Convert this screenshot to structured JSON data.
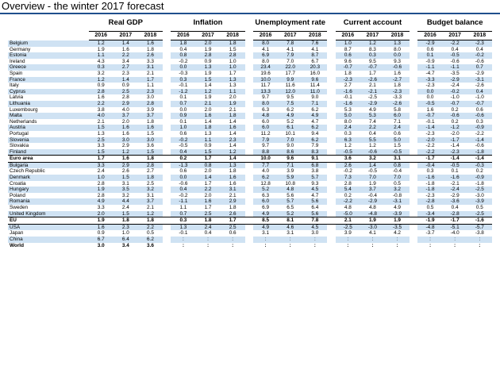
{
  "title": "Overview - the winter 2017 forecast",
  "groups": [
    "Real GDP",
    "Inflation",
    "Unemployment rate",
    "Current account",
    "Budget balance"
  ],
  "years": [
    "2016",
    "2017",
    "2018"
  ],
  "rows": [
    {
      "name": "Belgium",
      "shade": true,
      "vals": [
        "1.2",
        "1.4",
        "1.6",
        "1.8",
        "2.0",
        "1.8",
        "8.0",
        "7.8",
        "7.6",
        "1.0",
        "1.2",
        "1.3",
        "-2.9",
        "-2.2",
        "-2.3"
      ]
    },
    {
      "name": "Germany",
      "shade": false,
      "vals": [
        "1.9",
        "1.6",
        "1.8",
        "0.4",
        "1.9",
        "1.5",
        "4.1",
        "4.1",
        "4.1",
        "8.7",
        "8.3",
        "8.0",
        "0.6",
        "0.4",
        "0.4"
      ]
    },
    {
      "name": "Estonia",
      "shade": true,
      "vals": [
        "1.1",
        "2.2",
        "2.6",
        "0.8",
        "2.8",
        "2.8",
        "6.9",
        "7.9",
        "8.7",
        "0.6",
        "0.3",
        "0.0",
        "0.1",
        "-0.5",
        "-0.2"
      ]
    },
    {
      "name": "Ireland",
      "shade": false,
      "vals": [
        "4.3",
        "3.4",
        "3.3",
        "-0.2",
        "0.9",
        "1.0",
        "8.0",
        "7.0",
        "6.7",
        "9.6",
        "9.5",
        "9.3",
        "-0.9",
        "-0.6",
        "-0.6"
      ]
    },
    {
      "name": "Greece",
      "shade": true,
      "vals": [
        "0.3",
        "2.7",
        "3.1",
        "0.0",
        "1.3",
        "1.0",
        "23.4",
        "22.0",
        "20.3",
        "-0.7",
        "-0.7",
        "-0.6",
        "-1.1",
        "-1.1",
        "0.7"
      ]
    },
    {
      "name": "Spain",
      "shade": false,
      "vals": [
        "3.2",
        "2.3",
        "2.1",
        "-0.3",
        "1.9",
        "1.7",
        "19.6",
        "17.7",
        "16.0",
        "1.8",
        "1.7",
        "1.6",
        "-4.7",
        "-3.5",
        "-2.9"
      ]
    },
    {
      "name": "France",
      "shade": true,
      "vals": [
        "1.2",
        "1.4",
        "1.7",
        "0.3",
        "1.5",
        "1.3",
        "10.0",
        "9.9",
        "9.6",
        "-2.3",
        "-2.6",
        "-2.7",
        "-3.3",
        "-2.9",
        "-3.1"
      ]
    },
    {
      "name": "Italy",
      "shade": false,
      "vals": [
        "0.9",
        "0.9",
        "1.1",
        "-0.1",
        "1.4",
        "1.3",
        "11.7",
        "11.6",
        "11.4",
        "2.7",
        "2.1",
        "1.8",
        "-2.3",
        "-2.4",
        "-2.6"
      ]
    },
    {
      "name": "Cyprus",
      "shade": true,
      "vals": [
        "2.8",
        "2.5",
        "2.3",
        "-1.2",
        "1.2",
        "1.1",
        "13.3",
        "12.0",
        "11.0",
        "-1.6",
        "-2.1",
        "-2.3",
        "0.0",
        "-0.2",
        "0.4"
      ]
    },
    {
      "name": "Latvia",
      "shade": false,
      "vals": [
        "1.6",
        "2.8",
        "3.0",
        "0.1",
        "1.9",
        "2.0",
        "9.7",
        "9.5",
        "9.0",
        "-0.1",
        "-2.5",
        "-3.3",
        "0.0",
        "-1.0",
        "-1.0"
      ]
    },
    {
      "name": "Lithuania",
      "shade": true,
      "vals": [
        "2.2",
        "2.9",
        "2.8",
        "0.7",
        "2.1",
        "1.9",
        "8.0",
        "7.5",
        "7.1",
        "-1.6",
        "-2.9",
        "-2.6",
        "-0.5",
        "-0.7",
        "-0.7"
      ]
    },
    {
      "name": "Luxembourg",
      "shade": false,
      "vals": [
        "3.8",
        "4.0",
        "3.9",
        "0.0",
        "2.0",
        "2.1",
        "6.3",
        "6.2",
        "6.2",
        "5.3",
        "4.9",
        "5.8",
        "1.6",
        "0.2",
        "0.6"
      ]
    },
    {
      "name": "Malta",
      "shade": true,
      "vals": [
        "4.0",
        "3.7",
        "3.7",
        "0.9",
        "1.6",
        "1.8",
        "4.8",
        "4.9",
        "4.9",
        "5.0",
        "5.3",
        "6.0",
        "-0.7",
        "-0.6",
        "-0.6"
      ]
    },
    {
      "name": "Netherlands",
      "shade": false,
      "vals": [
        "2.1",
        "2.0",
        "1.8",
        "0.1",
        "1.4",
        "1.4",
        "6.0",
        "5.2",
        "4.7",
        "8.0",
        "7.4",
        "7.1",
        "-0.1",
        "0.2",
        "0.3"
      ]
    },
    {
      "name": "Austria",
      "shade": true,
      "vals": [
        "1.5",
        "1.6",
        "1.6",
        "1.0",
        "1.8",
        "1.6",
        "6.0",
        "6.1",
        "6.2",
        "2.4",
        "2.2",
        "2.4",
        "-1.4",
        "-1.2",
        "-0.9"
      ]
    },
    {
      "name": "Portugal",
      "shade": false,
      "vals": [
        "1.3",
        "1.6",
        "1.5",
        "0.6",
        "1.3",
        "1.4",
        "11.2",
        "10.1",
        "9.4",
        "0.3",
        "0.4",
        "0.6",
        "-2.3",
        "-2.0",
        "-2.2"
      ]
    },
    {
      "name": "Slovenia",
      "shade": true,
      "vals": [
        "2.5",
        "3.0",
        "3.0",
        "-0.2",
        "1.1",
        "2.3",
        "7.9",
        "7.0",
        "6.2",
        "6.3",
        "5.5",
        "5.0",
        "-2.0",
        "-1.7",
        "-1.4"
      ]
    },
    {
      "name": "Slovakia",
      "shade": false,
      "vals": [
        "3.3",
        "2.9",
        "3.6",
        "-0.5",
        "0.9",
        "1.4",
        "9.7",
        "9.0",
        "7.9",
        "1.2",
        "1.2",
        "1.5",
        "-2.2",
        "-1.4",
        "-0.6"
      ]
    },
    {
      "name": "Finland",
      "shade": true,
      "vals": [
        "1.5",
        "1.2",
        "1.5",
        "0.4",
        "1.5",
        "1.2",
        "8.8",
        "8.6",
        "8.3",
        "-0.5",
        "-0.6",
        "-0.5",
        "-2.2",
        "-2.3",
        "-1.8"
      ]
    },
    {
      "name": "Euro area",
      "agg": true,
      "vals": [
        "1.7",
        "1.6",
        "1.8",
        "0.2",
        "1.7",
        "1.4",
        "10.0",
        "9.6",
        "9.1",
        "3.6",
        "3.2",
        "3.1",
        "-1.7",
        "-1.4",
        "-1.4"
      ]
    },
    {
      "name": "Bulgaria",
      "shade": true,
      "vals": [
        "3.3",
        "2.9",
        "2.8",
        "-1.3",
        "0.8",
        "1.3",
        "7.7",
        "7.1",
        "6.8",
        "2.6",
        "1.4",
        "0.8",
        "-0.4",
        "-0.5",
        "-0.3"
      ]
    },
    {
      "name": "Czech Republic",
      "shade": false,
      "vals": [
        "2.4",
        "2.6",
        "2.7",
        "0.6",
        "2.0",
        "1.8",
        "4.0",
        "3.9",
        "3.8",
        "-0.2",
        "-0.5",
        "-0.4",
        "0.3",
        "0.1",
        "0.2"
      ]
    },
    {
      "name": "Denmark",
      "shade": true,
      "vals": [
        "1.0",
        "1.5",
        "1.8",
        "0.0",
        "1.4",
        "1.6",
        "6.2",
        "5.9",
        "5.7",
        "7.3",
        "7.0",
        "7.0",
        "-1.6",
        "-1.6",
        "-0.9"
      ]
    },
    {
      "name": "Croatia",
      "shade": false,
      "vals": [
        "2.8",
        "3.1",
        "2.5",
        "-0.6",
        "1.7",
        "1.6",
        "12.8",
        "10.8",
        "9.3",
        "2.8",
        "1.9",
        "0.5",
        "-1.8",
        "-2.1",
        "-1.8"
      ]
    },
    {
      "name": "Hungary",
      "shade": true,
      "vals": [
        "1.9",
        "3.5",
        "3.2",
        "0.4",
        "2.2",
        "3.1",
        "5.2",
        "4.8",
        "4.5",
        "5.4",
        "3.7",
        "3.2",
        "-1.8",
        "-2.4",
        "-2.5"
      ]
    },
    {
      "name": "Poland",
      "shade": false,
      "vals": [
        "2.8",
        "3.2",
        "3.1",
        "-0.2",
        "2.0",
        "2.1",
        "6.3",
        "5.6",
        "4.7",
        "0.2",
        "-0.4",
        "-0.8",
        "-2.3",
        "-2.9",
        "-3.0"
      ]
    },
    {
      "name": "Romania",
      "shade": true,
      "vals": [
        "4.9",
        "4.4",
        "3.7",
        "-1.1",
        "1.6",
        "2.9",
        "6.0",
        "5.7",
        "5.6",
        "-2.2",
        "-2.9",
        "-3.1",
        "-2.8",
        "-3.6",
        "-3.9"
      ]
    },
    {
      "name": "Sweden",
      "shade": false,
      "vals": [
        "3.3",
        "2.4",
        "2.1",
        "1.1",
        "1.7",
        "1.8",
        "6.9",
        "6.5",
        "6.4",
        "4.8",
        "4.8",
        "4.9",
        "0.5",
        "0.4",
        "0.5"
      ]
    },
    {
      "name": "United Kingdom",
      "shade": true,
      "vals": [
        "2.0",
        "1.5",
        "1.2",
        "0.7",
        "2.5",
        "2.6",
        "4.9",
        "5.2",
        "5.6",
        "-5.0",
        "-4.8",
        "-3.9",
        "-3.4",
        "-2.8",
        "-2.5"
      ]
    },
    {
      "name": "EU",
      "agg": true,
      "vals": [
        "1.9",
        "1.8",
        "1.8",
        "0.3",
        "1.8",
        "1.7",
        "8.5",
        "8.1",
        "7.8",
        "2.1",
        "1.9",
        "1.9",
        "-1.9",
        "-1.7",
        "-1.6"
      ]
    },
    {
      "name": "USA",
      "shade": true,
      "vals": [
        "1.6",
        "2.3",
        "2.2",
        "1.3",
        "2.4",
        "2.5",
        "4.9",
        "4.6",
        "4.5",
        "-2.5",
        "-3.0",
        "-3.5",
        "-4.8",
        "-5.1",
        "-5.7"
      ]
    },
    {
      "name": "Japan",
      "shade": false,
      "vals": [
        "0.9",
        "1.0",
        "0.5",
        "-0.1",
        "0.4",
        "0.6",
        "3.1",
        "3.1",
        "3.0",
        "3.9",
        "4.1",
        "4.2",
        "-3.7",
        "-4.0",
        "-3.8"
      ]
    },
    {
      "name": "China",
      "shade": true,
      "vals": [
        "6.7",
        "6.4",
        "6.2",
        ":",
        ":",
        ":",
        ":",
        ":",
        ":",
        ":",
        ":",
        ":",
        ":",
        ":",
        ":"
      ]
    },
    {
      "name": "World",
      "world": true,
      "vals": [
        "3.0",
        "3.4",
        "3.6",
        ":",
        ":",
        ":",
        ":",
        ":",
        ":",
        ":",
        ":",
        ":",
        ":",
        ":",
        ":"
      ]
    }
  ]
}
